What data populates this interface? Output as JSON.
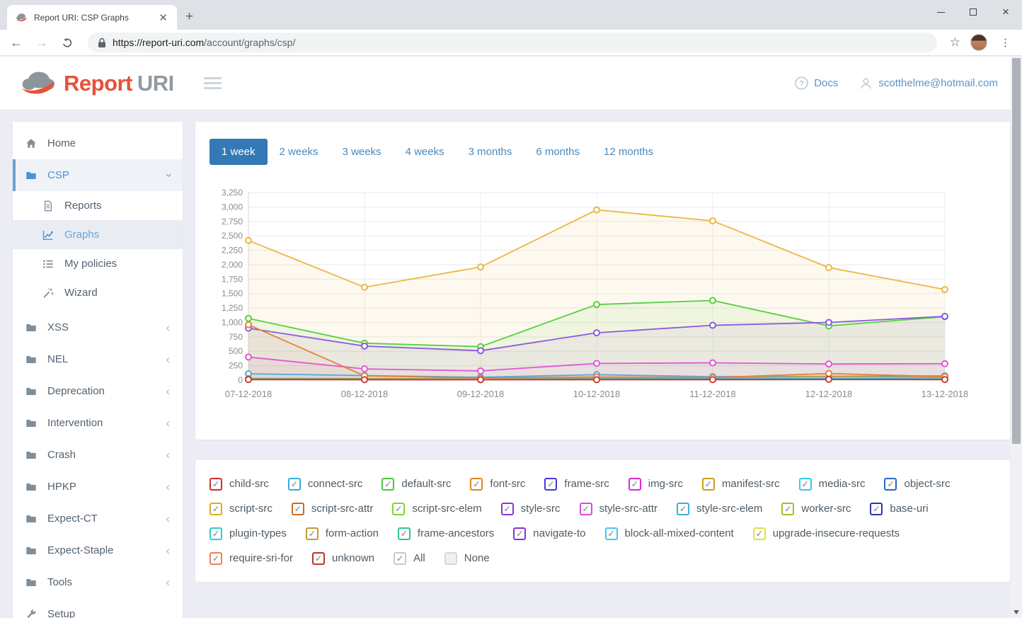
{
  "browser": {
    "tab_title": "Report URI: CSP Graphs",
    "new_tab_label": "+",
    "url_scheme_host": "https://report-uri.com",
    "url_path": "/account/graphs/csp/"
  },
  "header": {
    "brand_report": "Report",
    "brand_uri": "URI",
    "docs_label": "Docs",
    "user_email": "scotthelme@hotmail.com"
  },
  "colors": {
    "accent_blue": "#3478b6",
    "link_blue": "#5b94c8",
    "brand_red": "#e8503a",
    "brand_gray": "#939aa1"
  },
  "period_tabs": {
    "items": [
      {
        "label": "1 week",
        "active": true
      },
      {
        "label": "2 weeks",
        "active": false
      },
      {
        "label": "3 weeks",
        "active": false
      },
      {
        "label": "4 weeks",
        "active": false
      },
      {
        "label": "3 months",
        "active": false
      },
      {
        "label": "6 months",
        "active": false
      },
      {
        "label": "12 months",
        "active": false
      }
    ]
  },
  "sidebar": {
    "items": [
      {
        "label": "Home",
        "icon": "home-icon",
        "type": "top"
      },
      {
        "label": "CSP",
        "icon": "folder-icon",
        "type": "top",
        "active": true,
        "chevron": "down"
      },
      {
        "label": "Reports",
        "icon": "file-icon",
        "type": "sub"
      },
      {
        "label": "Graphs",
        "icon": "chart-icon",
        "type": "sub",
        "active": true
      },
      {
        "label": "My policies",
        "icon": "list-icon",
        "type": "sub"
      },
      {
        "label": "Wizard",
        "icon": "wand-icon",
        "type": "sub",
        "last_sub": true
      },
      {
        "label": "XSS",
        "icon": "folder-icon",
        "type": "top",
        "chevron": "left"
      },
      {
        "label": "NEL",
        "icon": "folder-icon",
        "type": "top",
        "chevron": "left"
      },
      {
        "label": "Deprecation",
        "icon": "folder-icon",
        "type": "top",
        "chevron": "left"
      },
      {
        "label": "Intervention",
        "icon": "folder-icon",
        "type": "top",
        "chevron": "left"
      },
      {
        "label": "Crash",
        "icon": "folder-icon",
        "type": "top",
        "chevron": "left"
      },
      {
        "label": "HPKP",
        "icon": "folder-icon",
        "type": "top",
        "chevron": "left"
      },
      {
        "label": "Expect-CT",
        "icon": "folder-icon",
        "type": "top",
        "chevron": "left"
      },
      {
        "label": "Expect-Staple",
        "icon": "folder-icon",
        "type": "top",
        "chevron": "left"
      },
      {
        "label": "Tools",
        "icon": "folder-icon",
        "type": "top",
        "chevron": "left"
      },
      {
        "label": "Setup",
        "icon": "wrench-icon",
        "type": "top"
      }
    ]
  },
  "chart_data": {
    "type": "line",
    "title": "",
    "xlabel": "",
    "ylabel": "",
    "x": [
      "07-12-2018",
      "08-12-2018",
      "09-12-2018",
      "10-12-2018",
      "11-12-2018",
      "12-12-2018",
      "13-12-2018"
    ],
    "ylim": [
      0,
      3250
    ],
    "ytick_step": 250,
    "grid": true,
    "legend_position": "none",
    "series": [
      {
        "name": "script-src",
        "color": "#eab744",
        "fill_opacity": 0.09,
        "values": [
          2420,
          1610,
          1960,
          2950,
          2760,
          1950,
          1570
        ]
      },
      {
        "name": "default-src",
        "color": "#55d13e",
        "fill_opacity": 0.08,
        "values": [
          1070,
          640,
          580,
          1310,
          1380,
          940,
          1100
        ]
      },
      {
        "name": "style-src",
        "color": "#8a5ae0",
        "fill_opacity": 0.07,
        "values": [
          900,
          590,
          510,
          820,
          950,
          1000,
          1105
        ]
      },
      {
        "name": "img-src",
        "color": "#e356d4",
        "fill_opacity": 0.06,
        "values": [
          400,
          195,
          160,
          290,
          300,
          280,
          285
        ]
      },
      {
        "name": "connect-src",
        "color": "#55a5e2",
        "fill_opacity": 0.06,
        "values": [
          110,
          80,
          50,
          95,
          60,
          65,
          75
        ]
      },
      {
        "name": "form-action",
        "color": "#c9a22e",
        "fill_opacity": 0.05,
        "values": [
          30,
          28,
          22,
          35,
          40,
          60,
          45
        ]
      },
      {
        "name": "media-src",
        "color": "#3cc9da",
        "fill_opacity": 0.05,
        "values": [
          18,
          15,
          12,
          20,
          22,
          28,
          22
        ]
      },
      {
        "name": "base-uri",
        "color": "#3a43bb",
        "fill_opacity": 0.05,
        "values": [
          12,
          10,
          8,
          12,
          14,
          16,
          14
        ]
      },
      {
        "name": "font-src",
        "color": "#e5803c",
        "fill_opacity": 0.06,
        "values": [
          960,
          75,
          35,
          55,
          45,
          115,
          60
        ]
      },
      {
        "name": "unknown",
        "color": "#cc4437",
        "fill_opacity": 0.05,
        "values": [
          10,
          8,
          8,
          8,
          8,
          12,
          10
        ]
      }
    ]
  },
  "legend": {
    "rows": [
      [
        {
          "label": "child-src",
          "color": "#c9302c",
          "checked": true
        },
        {
          "label": "connect-src",
          "color": "#39a9dc",
          "checked": true
        },
        {
          "label": "default-src",
          "color": "#47c83e",
          "checked": true
        },
        {
          "label": "font-src",
          "color": "#dd8420",
          "checked": true
        },
        {
          "label": "frame-src",
          "color": "#4636d8",
          "checked": true
        },
        {
          "label": "img-src",
          "color": "#df25d4",
          "checked": true
        },
        {
          "label": "manifest-src",
          "color": "#c3a118",
          "checked": true
        },
        {
          "label": "media-src",
          "color": "#35cbdf",
          "checked": true
        },
        {
          "label": "object-src",
          "color": "#2766c8",
          "checked": true
        }
      ],
      [
        {
          "label": "script-src",
          "color": "#ddad1f",
          "checked": true
        },
        {
          "label": "script-src-attr",
          "color": "#cd6a1f",
          "checked": true
        },
        {
          "label": "script-src-elem",
          "color": "#83d430",
          "checked": true
        },
        {
          "label": "style-src",
          "color": "#8e35d8",
          "checked": true
        },
        {
          "label": "style-src-attr",
          "color": "#d94ad8",
          "checked": true
        },
        {
          "label": "style-src-elem",
          "color": "#3daede",
          "checked": true
        },
        {
          "label": "worker-src",
          "color": "#abbc25",
          "checked": true
        },
        {
          "label": "base-uri",
          "color": "#2b35ae",
          "checked": true
        }
      ],
      [
        {
          "label": "plugin-types",
          "color": "#30ccc9",
          "checked": true
        },
        {
          "label": "form-action",
          "color": "#c19a2e",
          "checked": true
        },
        {
          "label": "frame-ancestors",
          "color": "#2cc492",
          "checked": true
        },
        {
          "label": "navigate-to",
          "color": "#8e2fd0",
          "checked": true
        },
        {
          "label": "block-all-mixed-content",
          "color": "#4cc3ef",
          "checked": true
        },
        {
          "label": "upgrade-insecure-requests",
          "color": "#e0e33c",
          "checked": true
        }
      ],
      [
        {
          "label": "require-sri-for",
          "color": "#ef7e57",
          "checked": true
        },
        {
          "label": "unknown",
          "color": "#bc342c",
          "checked": true
        },
        {
          "label": "All",
          "color": "#c3cad1",
          "checked": true
        },
        {
          "label": "None",
          "color": "#d4d8dc",
          "checked": false
        }
      ]
    ]
  }
}
